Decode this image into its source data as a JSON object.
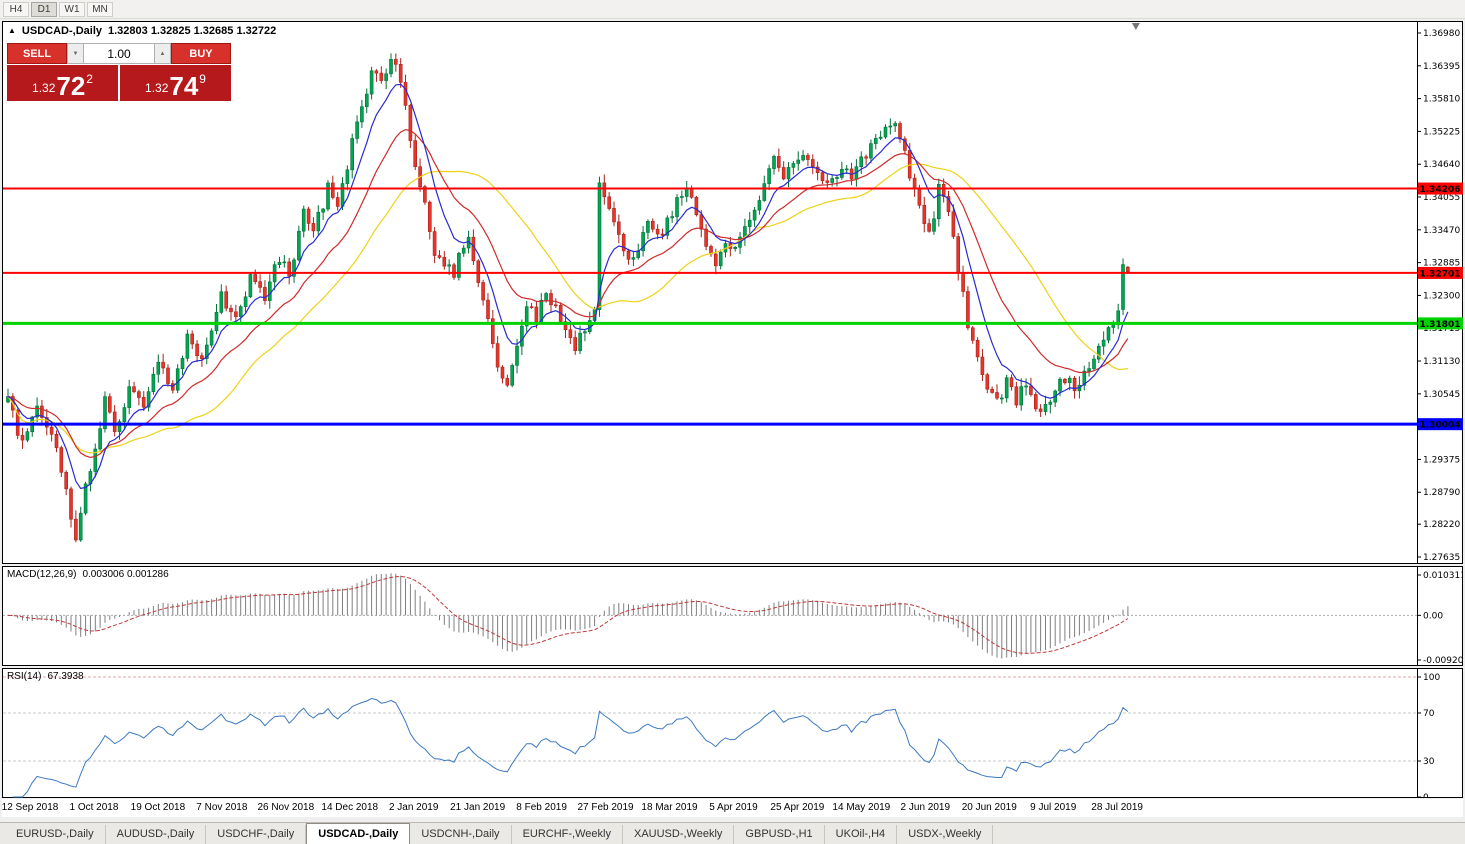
{
  "toolbar": {
    "timeframes": [
      {
        "label": "H4",
        "active": false
      },
      {
        "label": "D1",
        "active": true
      },
      {
        "label": "W1",
        "active": false
      },
      {
        "label": "MN",
        "active": false
      }
    ]
  },
  "chart": {
    "collapse_icon": "▲",
    "symbol_timeframe": "USDCAD-,Daily",
    "ohlc_text": "1.32803 1.32825 1.32685 1.32722"
  },
  "trade_widget": {
    "sell_label": "SELL",
    "buy_label": "BUY",
    "volume": "1.00",
    "spin_down_icon": "▼",
    "spin_up_icon": "▲",
    "sell_price": {
      "prefix": "1.32",
      "big": "72",
      "sup": "2"
    },
    "buy_price": {
      "prefix": "1.32",
      "big": "74",
      "sup": "9"
    }
  },
  "price_axis": {
    "main": [
      "1.36980",
      "1.36395",
      "1.35810",
      "1.35225",
      "1.34640",
      "1.34055",
      "1.33470",
      "1.32885",
      "1.32300",
      "1.31715",
      "1.31130",
      "1.30545",
      "1.29960",
      "1.29375",
      "1.28790",
      "1.28220",
      "1.27635"
    ],
    "macd": [
      "0.010311",
      "0.00",
      "-0.009203"
    ],
    "rsi": [
      "100",
      "70",
      "30",
      "0"
    ]
  },
  "hlines": [
    {
      "price": "1.34206",
      "color": "#FF0000",
      "thickness": 2
    },
    {
      "price": "1.32701",
      "color": "#FF0000",
      "thickness": 2
    },
    {
      "price": "1.31801",
      "color": "#00D200",
      "thickness": 3
    },
    {
      "price": "1.30004",
      "color": "#0000FF",
      "thickness": 3
    }
  ],
  "date_axis": [
    "12 Sep 2018",
    "1 Oct 2018",
    "19 Oct 2018",
    "7 Nov 2018",
    "26 Nov 2018",
    "14 Dec 2018",
    "2 Jan 2019",
    "21 Jan 2019",
    "8 Feb 2019",
    "27 Feb 2019",
    "18 Mar 2019",
    "5 Apr 2019",
    "25 Apr 2019",
    "14 May 2019",
    "2 Jun 2019",
    "20 Jun 2019",
    "9 Jul 2019",
    "28 Jul 2019"
  ],
  "tabs": [
    {
      "label": "EURUSD-,Daily",
      "active": false
    },
    {
      "label": "AUDUSD-,Daily",
      "active": false
    },
    {
      "label": "USDCHF-,Daily",
      "active": false
    },
    {
      "label": "USDCAD-,Daily",
      "active": true
    },
    {
      "label": "USDCNH-,Daily",
      "active": false
    },
    {
      "label": "EURCHF-,Weekly",
      "active": false
    },
    {
      "label": "XAUUSD-,Weekly",
      "active": false
    },
    {
      "label": "GBPUSD-,H1",
      "active": false
    },
    {
      "label": "UKOil-,H4",
      "active": false
    },
    {
      "label": "USDX-,Weekly",
      "active": false
    }
  ],
  "chart_data": {
    "type": "candlestick",
    "symbol": "USDCAD",
    "timeframe": "Daily",
    "price_range": {
      "min": 1.27635,
      "max": 1.3698
    },
    "num_candles": 232,
    "last_ohlc": {
      "open": 1.32803,
      "high": 1.32825,
      "low": 1.32685,
      "close": 1.32722
    },
    "spike_candle": {
      "index": 230,
      "o": 1.3205,
      "h": 1.3296,
      "l": 1.3195,
      "c": 1.3285
    },
    "anchors": [
      [
        0,
        1.304
      ],
      [
        3,
        1.2965
      ],
      [
        6,
        1.303
      ],
      [
        9,
        1.299
      ],
      [
        12,
        1.288
      ],
      [
        14,
        1.2803
      ],
      [
        16,
        1.29
      ],
      [
        18,
        1.295
      ],
      [
        20,
        1.304
      ],
      [
        22,
        1.2985
      ],
      [
        25,
        1.306
      ],
      [
        28,
        1.303
      ],
      [
        31,
        1.312
      ],
      [
        34,
        1.3065
      ],
      [
        37,
        1.316
      ],
      [
        40,
        1.312
      ],
      [
        44,
        1.323
      ],
      [
        47,
        1.3185
      ],
      [
        50,
        1.326
      ],
      [
        53,
        1.3225
      ],
      [
        56,
        1.33
      ],
      [
        58,
        1.3265
      ],
      [
        61,
        1.338
      ],
      [
        63,
        1.3345
      ],
      [
        66,
        1.342
      ],
      [
        68,
        1.3395
      ],
      [
        71,
        1.35
      ],
      [
        73,
        1.356
      ],
      [
        75,
        1.364
      ],
      [
        77,
        1.3615
      ],
      [
        79,
        1.3652
      ],
      [
        80,
        1.3638
      ],
      [
        82,
        1.356
      ],
      [
        84,
        1.347
      ],
      [
        86,
        1.339
      ],
      [
        88,
        1.33
      ],
      [
        90,
        1.3285
      ],
      [
        92,
        1.327
      ],
      [
        94,
        1.332
      ],
      [
        95,
        1.334
      ],
      [
        97,
        1.3255
      ],
      [
        99,
        1.3185
      ],
      [
        101,
        1.3095
      ],
      [
        103,
        1.3062
      ],
      [
        105,
        1.315
      ],
      [
        107,
        1.322
      ],
      [
        109,
        1.3185
      ],
      [
        111,
        1.324
      ],
      [
        113,
        1.3205
      ],
      [
        115,
        1.3165
      ],
      [
        117,
        1.3135
      ],
      [
        119,
        1.3175
      ],
      [
        121,
        1.321
      ],
      [
        122,
        1.344
      ],
      [
        124,
        1.339
      ],
      [
        126,
        1.334
      ],
      [
        128,
        1.329
      ],
      [
        130,
        1.332
      ],
      [
        132,
        1.3355
      ],
      [
        134,
        1.3335
      ],
      [
        136,
        1.336
      ],
      [
        138,
        1.3395
      ],
      [
        140,
        1.342
      ],
      [
        142,
        1.337
      ],
      [
        144,
        1.332
      ],
      [
        146,
        1.329
      ],
      [
        148,
        1.333
      ],
      [
        150,
        1.331
      ],
      [
        152,
        1.335
      ],
      [
        154,
        1.339
      ],
      [
        156,
        1.343
      ],
      [
        158,
        1.347
      ],
      [
        160,
        1.344
      ],
      [
        162,
        1.346
      ],
      [
        164,
        1.3485
      ],
      [
        166,
        1.3465
      ],
      [
        168,
        1.3445
      ],
      [
        170,
        1.343
      ],
      [
        172,
        1.346
      ],
      [
        174,
        1.344
      ],
      [
        176,
        1.347
      ],
      [
        178,
        1.349
      ],
      [
        180,
        1.351
      ],
      [
        182,
        1.354
      ],
      [
        184,
        1.3515
      ],
      [
        186,
        1.3445
      ],
      [
        188,
        1.3385
      ],
      [
        190,
        1.3335
      ],
      [
        192,
        1.342
      ],
      [
        194,
        1.338
      ],
      [
        196,
        1.328
      ],
      [
        198,
        1.318
      ],
      [
        200,
        1.311
      ],
      [
        202,
        1.3062
      ],
      [
        204,
        1.304
      ],
      [
        206,
        1.3075
      ],
      [
        208,
        1.3045
      ],
      [
        210,
        1.307
      ],
      [
        212,
        1.3038
      ],
      [
        214,
        1.3028
      ],
      [
        216,
        1.306
      ],
      [
        218,
        1.3085
      ],
      [
        220,
        1.3065
      ],
      [
        222,
        1.3095
      ],
      [
        224,
        1.3125
      ],
      [
        226,
        1.315
      ],
      [
        228,
        1.3185
      ],
      [
        230,
        1.3235
      ],
      [
        231,
        1.3272
      ]
    ],
    "moving_averages": [
      {
        "type": "ema",
        "period": 8,
        "color": "#2A2AD0"
      },
      {
        "type": "ema",
        "period": 20,
        "color": "#D02A2A"
      },
      {
        "type": "sma",
        "period": 34,
        "color": "#EFD118"
      }
    ],
    "macd": {
      "label": "MACD(12,26,9)",
      "values_text": "0.003006 0.001286",
      "fast": 12,
      "slow": 26,
      "signal": 9,
      "axis_max": 0.010311,
      "axis_min": -0.009203
    },
    "rsi": {
      "label": "RSI(14)",
      "value_text": "67.3938",
      "period": 14,
      "levels": [
        70,
        30
      ]
    },
    "colors": {
      "candle_up": "#00A651",
      "candle_up_border": "#007038",
      "candle_down": "#E6362B",
      "candle_down_border": "#A8211A",
      "macd_hist": "#7F7F7F",
      "macd_signal": "#C03A3A",
      "rsi_line": "#3C78C0",
      "rsi_levels": "#C8C8C8",
      "rsi_level_100": "#E0A8A8"
    }
  }
}
